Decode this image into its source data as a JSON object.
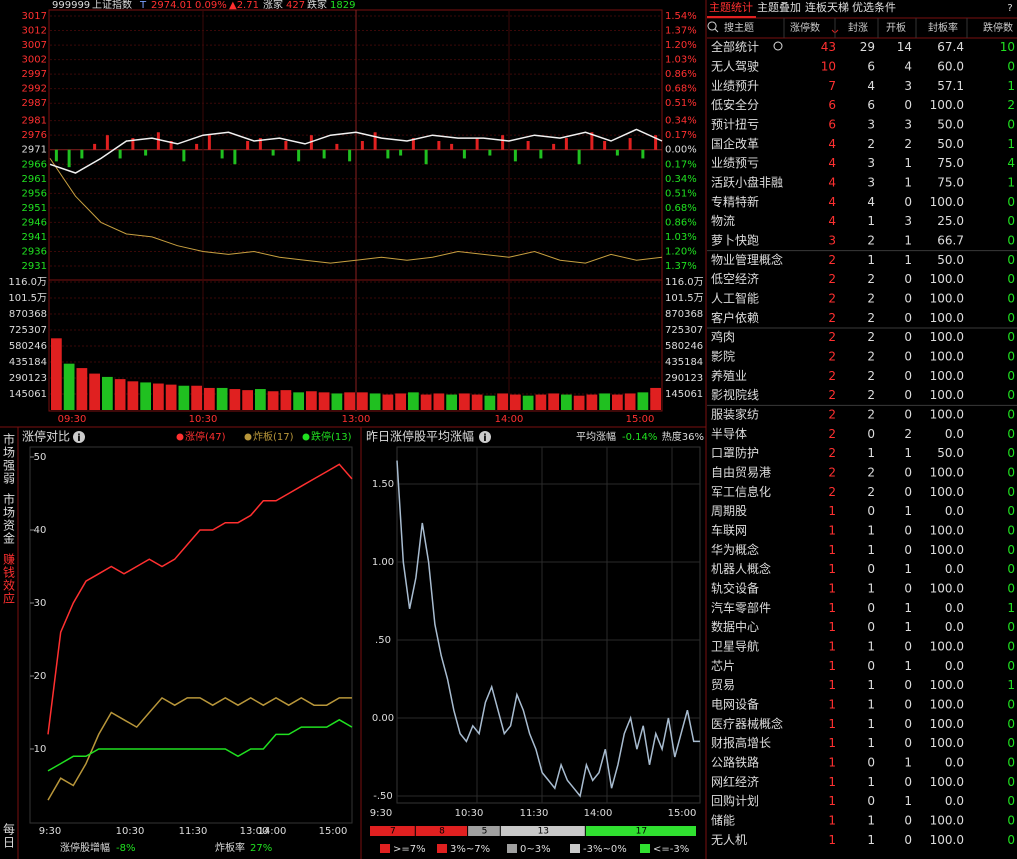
{
  "header": {
    "code": "999999",
    "name": "上证指数",
    "flag": "T",
    "price": "2974.01",
    "pct": "0.09%",
    "chg": "▲2.71",
    "up_label": "涨家",
    "up": "427",
    "down_label": "跌家",
    "down": "1829"
  },
  "intraday": {
    "price_ylim": [
      2931,
      3017
    ],
    "price_ticks": [
      3017,
      3012,
      3007,
      3002,
      2997,
      2992,
      2987,
      2981,
      2976,
      2971,
      2966,
      2961,
      2956,
      2951,
      2946,
      2941,
      2936,
      2931
    ],
    "pct_ticks": [
      "1.54%",
      "1.37%",
      "1.20%",
      "1.03%",
      "0.86%",
      "0.68%",
      "0.51%",
      "0.34%",
      "0.17%",
      "0.00%",
      "0.17%",
      "0.34%",
      "0.51%",
      "0.68%",
      "0.86%",
      "1.03%",
      "1.20%",
      "1.37%"
    ],
    "price_line": [
      2966,
      2963,
      2968,
      2974,
      2975,
      2973,
      2976,
      2977,
      2974,
      2975,
      2973,
      2976,
      2977,
      2975,
      2974,
      2976,
      2975,
      2975,
      2974,
      2976,
      2975,
      2977,
      2974,
      2978,
      2974
    ],
    "avg_line": [
      2968,
      2955,
      2946,
      2942,
      2941,
      2938,
      2936,
      2935,
      2936,
      2934,
      2933,
      2932,
      2933,
      2934,
      2933,
      2934,
      2936,
      2935,
      2934,
      2936,
      2933,
      2932,
      2935,
      2933,
      2934
    ],
    "breadth_bars": [
      -4,
      -6,
      -3,
      2,
      5,
      -3,
      4,
      -2,
      6,
      3,
      -4,
      2,
      5,
      -3,
      -5,
      3,
      4,
      -2,
      3,
      -4,
      5,
      -3,
      2,
      -4,
      3,
      6,
      -3,
      -2,
      4,
      -5,
      3,
      2,
      -3,
      4,
      -2,
      5,
      -4,
      3,
      -3,
      2,
      4,
      -5,
      6,
      3,
      -2,
      4,
      -3,
      5
    ],
    "volume_ylim": [
      0,
      1160488
    ],
    "volume_ticks": [
      {
        "value": 1160488,
        "label": "116.0万"
      },
      {
        "value": 1015427,
        "label": "101.5万"
      },
      870368,
      725307,
      580246,
      435184,
      290123,
      145061
    ],
    "volume": [
      650000,
      420000,
      380000,
      330000,
      300000,
      280000,
      260000,
      250000,
      240000,
      230000,
      220000,
      220000,
      200000,
      200000,
      190000,
      180000,
      190000,
      170000,
      180000,
      160000,
      170000,
      160000,
      150000,
      160000,
      160000,
      150000,
      140000,
      150000,
      160000,
      140000,
      150000,
      140000,
      150000,
      140000,
      130000,
      150000,
      140000,
      130000,
      140000,
      150000,
      140000,
      130000,
      140000,
      150000,
      140000,
      150000,
      160000,
      200000
    ],
    "time_labels": [
      "09:30",
      "10:30",
      "13:00",
      "14:00",
      "15:00"
    ]
  },
  "side_tabs": [
    "市场强弱",
    "市场资金",
    "赚钱效应",
    "每日"
  ],
  "limit_chart": {
    "title": "涨停对比",
    "ylim": [
      0,
      50
    ],
    "yticks": [
      50,
      40,
      30,
      20,
      10
    ],
    "time_labels": [
      "9:30",
      "10:30",
      "11:30",
      "13:00",
      "14:00",
      "15:00"
    ],
    "series": [
      {
        "name": "涨停(47)",
        "color": "#ff3030",
        "values": [
          12,
          26,
          30,
          33,
          34,
          35,
          34,
          35,
          36,
          35,
          36,
          38,
          40,
          40,
          41,
          41,
          42,
          44,
          44,
          45,
          46,
          47,
          48,
          49,
          47
        ]
      },
      {
        "name": "炸板(17)",
        "color": "#b8963a",
        "values": [
          3,
          6,
          5,
          8,
          12,
          15,
          14,
          13,
          15,
          17,
          16,
          17,
          17,
          16,
          17,
          16,
          17,
          16,
          17,
          16,
          17,
          16,
          16,
          17,
          17
        ]
      },
      {
        "name": "跌停(13)",
        "color": "#20e020",
        "values": [
          7,
          8,
          9,
          9,
          10,
          10,
          10,
          10,
          10,
          10,
          10,
          10,
          10,
          10,
          10,
          9,
          10,
          10,
          12,
          12,
          13,
          13,
          13,
          14,
          13
        ]
      }
    ],
    "footer": [
      {
        "label": "涨停股增幅",
        "value": "-8%"
      },
      {
        "label": "炸板率",
        "value": "27%"
      }
    ]
  },
  "avg_chart": {
    "title": "昨日涨停股平均涨幅",
    "avg_label": "平均涨幅",
    "avg_value": "-0.14%",
    "heat": "热度36%",
    "ylim": [
      -0.55,
      1.7
    ],
    "yticks": [
      {
        "value": 1.5,
        "label": "1.50"
      },
      {
        "value": 1,
        "label": "1.00"
      },
      {
        "value": 0.5,
        "label": ".50"
      },
      {
        "value": 0,
        "label": "0.00"
      },
      {
        "value": -0.5,
        "label": "-.50"
      }
    ],
    "time_labels": [
      "9:30",
      "10:30",
      "11:30",
      "14:00",
      "15:00"
    ],
    "values": [
      1.65,
      1.0,
      0.7,
      0.9,
      1.25,
      1.0,
      0.6,
      0.4,
      0.25,
      0.05,
      -0.1,
      -0.15,
      -0.05,
      -0.1,
      0.1,
      0.2,
      0.05,
      -0.1,
      -0.05,
      0.15,
      0.05,
      -0.1,
      -0.2,
      -0.35,
      -0.4,
      -0.45,
      -0.3,
      -0.4,
      -0.45,
      -0.5,
      -0.3,
      -0.4,
      -0.35,
      -0.2,
      -0.45,
      -0.3,
      -0.1,
      0.0,
      -0.2,
      -0.05,
      -0.3,
      -0.1,
      -0.2,
      0.0,
      -0.25,
      -0.1,
      0.05,
      -0.15,
      -0.15
    ],
    "dist": {
      "values": [
        7,
        8,
        5,
        13,
        17
      ],
      "colors": [
        "#e02020",
        "#e02020",
        "#a0a0a0",
        "#c8c8c8",
        "#30e030"
      ],
      "labels": [
        ">=7%",
        "3%~7%",
        "0~3%",
        "-3%~0%",
        "<=-3%"
      ]
    }
  },
  "themes": {
    "tabs": [
      "主题统计",
      "主题叠加",
      "连板天梯",
      "优选条件"
    ],
    "help": "?",
    "columns": [
      "搜主题",
      "涨停数",
      "封涨",
      "开板",
      "封板率",
      "跌停数"
    ],
    "rows": [
      [
        "全部统计",
        "43",
        "29",
        "14",
        "67.4",
        "10"
      ],
      [
        "无人驾驶",
        "10",
        "6",
        "4",
        "60.0",
        "0"
      ],
      [
        "业绩预升",
        "7",
        "4",
        "3",
        "57.1",
        "1"
      ],
      [
        "低安全分",
        "6",
        "6",
        "0",
        "100.0",
        "2"
      ],
      [
        "预计扭亏",
        "6",
        "3",
        "3",
        "50.0",
        "0"
      ],
      [
        "国企改革",
        "4",
        "2",
        "2",
        "50.0",
        "1"
      ],
      [
        "业绩预亏",
        "4",
        "3",
        "1",
        "75.0",
        "4"
      ],
      [
        "活跃小盘非融",
        "4",
        "3",
        "1",
        "75.0",
        "1"
      ],
      [
        "专精特新",
        "4",
        "4",
        "0",
        "100.0",
        "0"
      ],
      [
        "物流",
        "4",
        "1",
        "3",
        "25.0",
        "0"
      ],
      [
        "萝卜快跑",
        "3",
        "2",
        "1",
        "66.7",
        "0"
      ],
      [
        "物业管理概念",
        "2",
        "1",
        "1",
        "50.0",
        "0"
      ],
      [
        "低空经济",
        "2",
        "2",
        "0",
        "100.0",
        "0"
      ],
      [
        "人工智能",
        "2",
        "2",
        "0",
        "100.0",
        "0"
      ],
      [
        "客户依赖",
        "2",
        "2",
        "0",
        "100.0",
        "0"
      ],
      [
        "鸡肉",
        "2",
        "2",
        "0",
        "100.0",
        "0"
      ],
      [
        "影院",
        "2",
        "2",
        "0",
        "100.0",
        "0"
      ],
      [
        "养殖业",
        "2",
        "2",
        "0",
        "100.0",
        "0"
      ],
      [
        "影视院线",
        "2",
        "2",
        "0",
        "100.0",
        "0"
      ],
      [
        "服装家纺",
        "2",
        "2",
        "0",
        "100.0",
        "0"
      ],
      [
        "半导体",
        "2",
        "0",
        "2",
        "0.0",
        "0"
      ],
      [
        "口罩防护",
        "2",
        "1",
        "1",
        "50.0",
        "0"
      ],
      [
        "自由贸易港",
        "2",
        "2",
        "0",
        "100.0",
        "0"
      ],
      [
        "军工信息化",
        "2",
        "2",
        "0",
        "100.0",
        "0"
      ],
      [
        "周期股",
        "1",
        "0",
        "1",
        "0.0",
        "0"
      ],
      [
        "车联网",
        "1",
        "1",
        "0",
        "100.0",
        "0"
      ],
      [
        "华为概念",
        "1",
        "1",
        "0",
        "100.0",
        "0"
      ],
      [
        "机器人概念",
        "1",
        "0",
        "1",
        "0.0",
        "0"
      ],
      [
        "轨交设备",
        "1",
        "1",
        "0",
        "100.0",
        "0"
      ],
      [
        "汽车零部件",
        "1",
        "0",
        "1",
        "0.0",
        "1"
      ],
      [
        "数据中心",
        "1",
        "0",
        "1",
        "0.0",
        "0"
      ],
      [
        "卫星导航",
        "1",
        "1",
        "0",
        "100.0",
        "0"
      ],
      [
        "芯片",
        "1",
        "0",
        "1",
        "0.0",
        "0"
      ],
      [
        "贸易",
        "1",
        "1",
        "0",
        "100.0",
        "1"
      ],
      [
        "电网设备",
        "1",
        "1",
        "0",
        "100.0",
        "0"
      ],
      [
        "医疗器械概念",
        "1",
        "1",
        "0",
        "100.0",
        "0"
      ],
      [
        "财报高增长",
        "1",
        "1",
        "0",
        "100.0",
        "0"
      ],
      [
        "公路铁路",
        "1",
        "0",
        "1",
        "0.0",
        "0"
      ],
      [
        "网红经济",
        "1",
        "1",
        "0",
        "100.0",
        "0"
      ],
      [
        "回购计划",
        "1",
        "0",
        "1",
        "0.0",
        "0"
      ],
      [
        "储能",
        "1",
        "1",
        "0",
        "100.0",
        "0"
      ],
      [
        "无人机",
        "1",
        "1",
        "0",
        "100.0",
        "0"
      ]
    ]
  }
}
